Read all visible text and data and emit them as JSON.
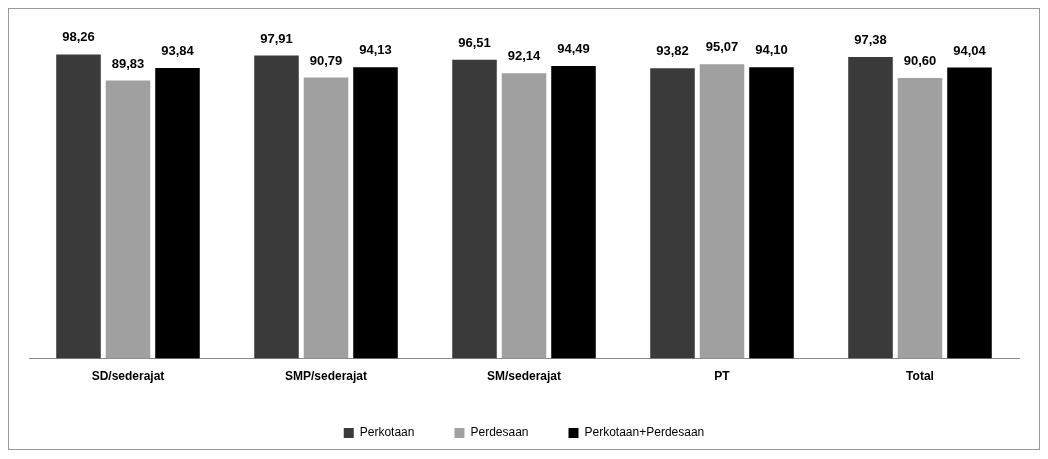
{
  "chart_data": {
    "type": "bar",
    "categories": [
      "SD/sederajat",
      "SMP/sederajat",
      "SM/sederajat",
      "PT",
      "Total"
    ],
    "legend": "bottom",
    "grid": false,
    "series": [
      {
        "name": "Perkotaan",
        "color": "#3a3a3a",
        "values": [
          98.26,
          97.91,
          96.51,
          93.82,
          97.38
        ],
        "value_labels": [
          "98,26",
          "97,91",
          "96,51",
          "93,82",
          "97,38"
        ]
      },
      {
        "name": "Perdesaan",
        "color": "#a0a0a0",
        "values": [
          89.83,
          90.79,
          92.14,
          95.07,
          90.6
        ],
        "value_labels": [
          "89,83",
          "90,79",
          "92,14",
          "95,07",
          "90,60"
        ]
      },
      {
        "name": "Perkotaan+Perdesaan",
        "color": "#000000",
        "values": [
          93.84,
          94.13,
          94.49,
          94.1,
          94.04
        ],
        "value_labels": [
          "93,84",
          "94,13",
          "94,49",
          "94,10",
          "94,04"
        ]
      }
    ]
  }
}
